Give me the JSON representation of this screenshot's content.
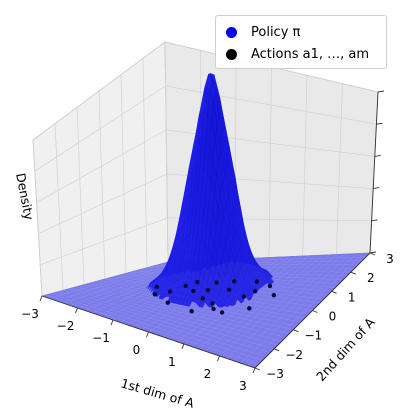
{
  "chart_data": {
    "type": "surface3d",
    "title": "",
    "xlabel": "1st dim of A",
    "ylabel": "2nd dim of A",
    "zlabel": "Density",
    "xlim": [
      -3,
      3
    ],
    "ylim": [
      -3,
      3
    ],
    "x_ticks": [
      "−3",
      "−2",
      "−1",
      "0",
      "1",
      "2",
      "3"
    ],
    "y_ticks": [
      "−3",
      "−2",
      "−1",
      "0",
      "1",
      "2",
      "3"
    ],
    "grid": true,
    "legend_position": "top-right",
    "legend": [
      {
        "label": "Policy π",
        "color": "#0000ee"
      },
      {
        "label": "Actions a1, …, am",
        "color": "#000000"
      }
    ],
    "surface": {
      "name": "Policy π",
      "color": "#1a1aee",
      "peak_x": -0.3,
      "peak_y": 0.6
    },
    "points": {
      "name": "Actions a1, …, am",
      "color": "#0a0a3a",
      "x": [
        -1.2,
        -0.9,
        -0.6,
        -0.3,
        0.0,
        0.3,
        0.6,
        0.9,
        1.2,
        -1.5,
        -1.0,
        -0.5,
        0.2,
        0.7,
        1.4,
        -0.2,
        0.4,
        1.0,
        -0.8,
        0.1,
        0.9,
        1.6
      ],
      "y": [
        -0.6,
        0.4,
        -1.0,
        0.9,
        -0.3,
        0.5,
        -0.8,
        0.2,
        1.0,
        0.0,
        -0.2,
        0.1,
        -1.2,
        1.2,
        -0.4,
        0.3,
        -0.5,
        0.6,
        0.8,
        1.1,
        -0.9,
        0.5
      ]
    }
  }
}
